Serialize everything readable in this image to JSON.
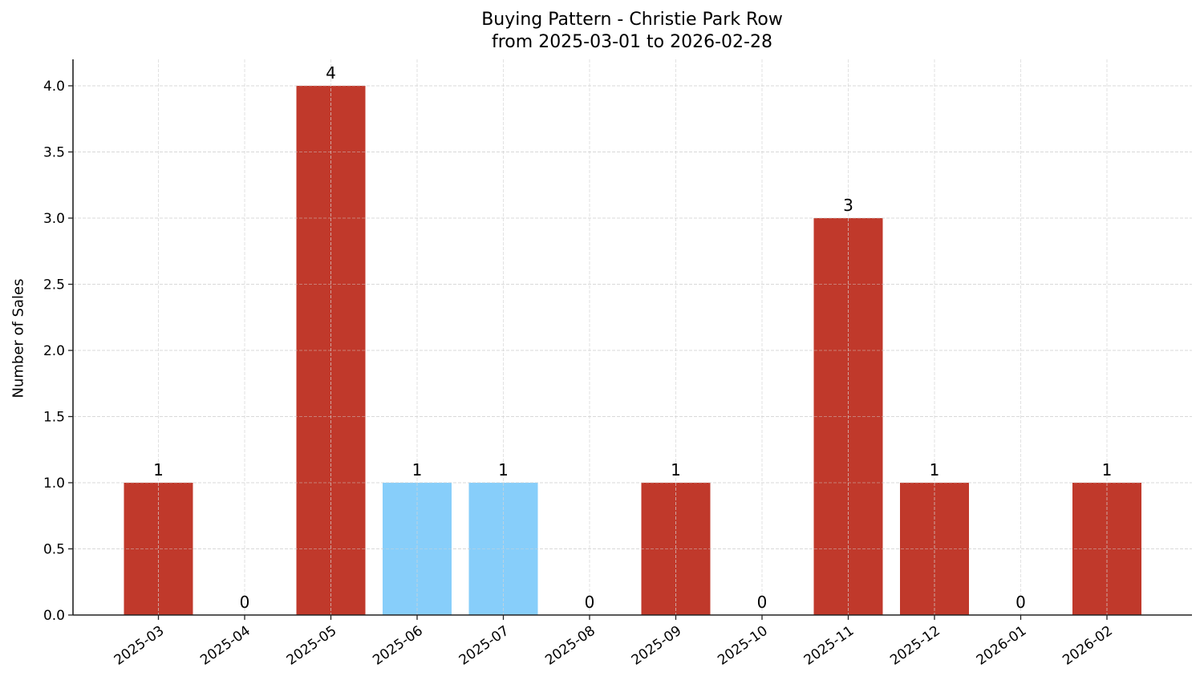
{
  "chart_data": {
    "type": "bar",
    "title": "Buying Pattern - Christie Park Row",
    "subtitle": "from 2025-03-01 to 2026-02-28",
    "xlabel": "",
    "ylabel": "Number of Sales",
    "categories": [
      "2025-03",
      "2025-04",
      "2025-05",
      "2025-06",
      "2025-07",
      "2025-08",
      "2025-09",
      "2025-10",
      "2025-11",
      "2025-12",
      "2026-01",
      "2026-02"
    ],
    "values": [
      1,
      0,
      4,
      1,
      1,
      0,
      1,
      0,
      3,
      1,
      0,
      1
    ],
    "bar_colors": [
      "#c0392b",
      "#c0392b",
      "#c0392b",
      "#87cefa",
      "#87cefa",
      "#c0392b",
      "#c0392b",
      "#c0392b",
      "#c0392b",
      "#c0392b",
      "#c0392b",
      "#c0392b"
    ],
    "data_labels": [
      "1",
      "0",
      "4",
      "1",
      "1",
      "0",
      "1",
      "0",
      "3",
      "1",
      "0",
      "1"
    ],
    "ylim": [
      0,
      4.2
    ],
    "yticks": [
      "0.0",
      "0.5",
      "1.0",
      "1.5",
      "2.0",
      "2.5",
      "3.0",
      "3.5",
      "4.0"
    ],
    "grid": true,
    "legend": null
  }
}
